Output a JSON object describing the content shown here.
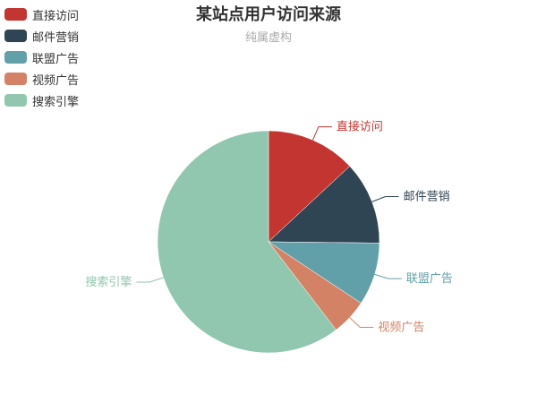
{
  "chart_data": {
    "type": "pie",
    "title": "某站点用户访问来源",
    "subtitle": "纯属虚构",
    "legend_position": "top-left",
    "slices": [
      {
        "name": "直接访问",
        "value": 335,
        "color": "#c23531"
      },
      {
        "name": "邮件营销",
        "value": 310,
        "color": "#2f4554"
      },
      {
        "name": "联盟广告",
        "value": 234,
        "color": "#61a0a8"
      },
      {
        "name": "视频广告",
        "value": 135,
        "color": "#d48265"
      },
      {
        "name": "搜索引擎",
        "value": 1548,
        "color": "#91c7ae"
      }
    ]
  }
}
